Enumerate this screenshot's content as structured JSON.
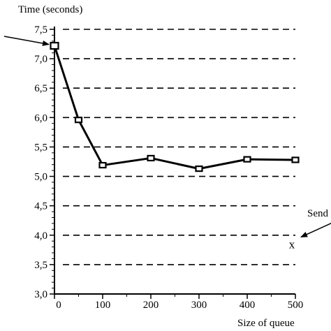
{
  "chart_data": {
    "type": "line",
    "ylabel": "Time (seconds)",
    "xlabel": "Size of queue",
    "xlim": [
      0,
      500
    ],
    "ylim": [
      3.0,
      7.5
    ],
    "x_ticks": [
      "0",
      "100",
      "200",
      "300",
      "400",
      "500"
    ],
    "x_tick_values": [
      0,
      100,
      200,
      300,
      400,
      500
    ],
    "y_ticks": [
      "3,0",
      "3,5",
      "4,0",
      "4,5",
      "5,0",
      "5,5",
      "6,0",
      "6,5",
      "7,0",
      "7,5"
    ],
    "y_tick_values": [
      3.0,
      3.5,
      4.0,
      4.5,
      5.0,
      5.5,
      6.0,
      6.5,
      7.0,
      7.5
    ],
    "grid": "horizontal dashed",
    "series": [
      {
        "x": [
          0,
          50,
          100,
          200,
          300,
          400,
          500
        ],
        "y": [
          7.22,
          5.96,
          5.19,
          5.31,
          5.13,
          5.29,
          5.28
        ],
        "marker": "square"
      }
    ],
    "annotations": [
      {
        "text": "",
        "points_to": {
          "x": 0,
          "y": 7.22
        },
        "side": "left"
      },
      {
        "text": "Send",
        "points_to": {
          "x": 500,
          "y": 3.85
        },
        "side": "right",
        "marker": "x",
        "marker_text": "x"
      }
    ]
  }
}
